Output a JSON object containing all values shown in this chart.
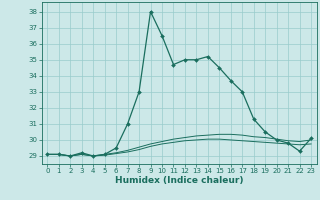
{
  "xlabel": "Humidex (Indice chaleur)",
  "background_color": "#cce8e8",
  "grid_color": "#99cccc",
  "line_color": "#1a6e5e",
  "xlim": [
    -0.5,
    23.5
  ],
  "ylim": [
    28.5,
    38.6
  ],
  "xticks": [
    0,
    1,
    2,
    3,
    4,
    5,
    6,
    7,
    8,
    9,
    10,
    11,
    12,
    13,
    14,
    15,
    16,
    17,
    18,
    19,
    20,
    21,
    22,
    23
  ],
  "yticks": [
    29,
    30,
    31,
    32,
    33,
    34,
    35,
    36,
    37,
    38
  ],
  "series1_x": [
    0,
    1,
    2,
    3,
    4,
    5,
    6,
    7,
    8,
    9,
    10,
    11,
    12,
    13,
    14,
    15,
    16,
    17,
    18,
    19,
    20,
    21,
    22,
    23
  ],
  "series1_y": [
    29.1,
    29.1,
    29.0,
    29.2,
    29.0,
    29.1,
    29.5,
    31.0,
    33.0,
    38.0,
    36.5,
    34.7,
    35.0,
    35.0,
    35.2,
    34.5,
    33.7,
    33.0,
    31.3,
    30.5,
    30.0,
    29.8,
    29.3,
    30.1
  ],
  "series2_x": [
    0,
    1,
    2,
    3,
    4,
    5,
    6,
    7,
    8,
    9,
    10,
    11,
    12,
    13,
    14,
    15,
    16,
    17,
    18,
    19,
    20,
    21,
    22,
    23
  ],
  "series2_y": [
    29.1,
    29.1,
    29.0,
    29.1,
    29.0,
    29.1,
    29.2,
    29.35,
    29.55,
    29.75,
    29.9,
    30.05,
    30.15,
    30.25,
    30.3,
    30.35,
    30.35,
    30.3,
    30.2,
    30.15,
    30.05,
    29.95,
    29.9,
    30.0
  ],
  "series3_x": [
    0,
    1,
    2,
    3,
    4,
    5,
    6,
    7,
    8,
    9,
    10,
    11,
    12,
    13,
    14,
    15,
    16,
    17,
    18,
    19,
    20,
    21,
    22,
    23
  ],
  "series3_y": [
    29.1,
    29.1,
    29.0,
    29.1,
    29.0,
    29.05,
    29.15,
    29.25,
    29.4,
    29.6,
    29.75,
    29.85,
    29.95,
    30.0,
    30.05,
    30.05,
    30.0,
    29.95,
    29.9,
    29.85,
    29.8,
    29.75,
    29.7,
    29.75
  ]
}
